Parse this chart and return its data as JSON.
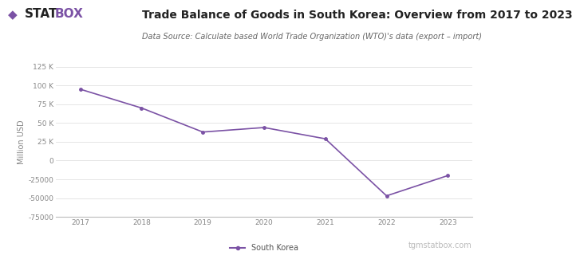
{
  "title": "Trade Balance of Goods in South Korea: Overview from 2017 to 2023",
  "subtitle": "Data Source: Calculate based World Trade Organization (WTO)'s data (export – import)",
  "ylabel": "Million USD",
  "years": [
    2017,
    2018,
    2019,
    2020,
    2021,
    2022,
    2023
  ],
  "values": [
    95000,
    70000,
    38000,
    44000,
    29000,
    -47000,
    -20000
  ],
  "line_color": "#7B52A5",
  "line_width": 1.2,
  "marker": "o",
  "marker_size": 2.5,
  "ylim": [
    -75000,
    125000
  ],
  "yticks": [
    -75000,
    -50000,
    -25000,
    0,
    25000,
    50000,
    75000,
    100000,
    125000
  ],
  "ytick_labels": [
    "-75000",
    "-50000",
    "-25000",
    "0",
    "25 K",
    "50 K",
    "75 K",
    "100 K",
    "125 K"
  ],
  "background_color": "#ffffff",
  "grid_color": "#e0e0e0",
  "legend_label": "South Korea",
  "logo_diamond": "◆",
  "logo_stat": "STAT",
  "logo_box": "BOX",
  "watermark": "tgmstatbox.com",
  "title_fontsize": 10,
  "subtitle_fontsize": 7,
  "ylabel_fontsize": 7,
  "tick_fontsize": 6.5,
  "legend_fontsize": 7,
  "watermark_fontsize": 7,
  "logo_fontsize": 11
}
